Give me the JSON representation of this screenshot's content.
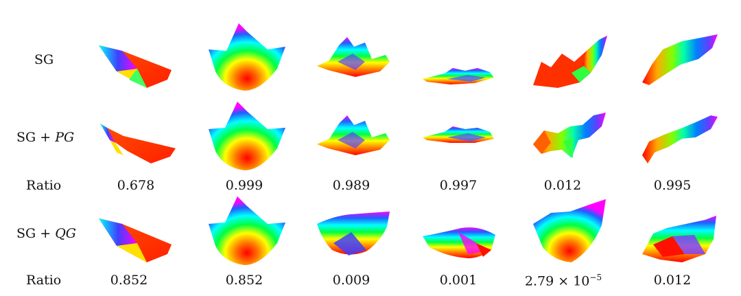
{
  "rows": [
    {
      "label_main": "SG",
      "label_op": "",
      "label_var": ""
    },
    {
      "label_main": "SG",
      "label_op": "+",
      "label_var": "PG"
    },
    {
      "label_main": "SG",
      "label_op": "+",
      "label_var": "QG"
    }
  ],
  "ratio_label": "Ratio",
  "ratios_pg": [
    "0.678",
    "0.999",
    "0.989",
    "0.997",
    "0.012",
    "0.995"
  ],
  "ratios_qg": [
    "0.852",
    "0.852",
    "0.009",
    "0.001",
    "",
    "0.012"
  ],
  "ratio_qg_5": {
    "mantissa": "2.79",
    "times": "×",
    "base": "10",
    "exponent": "−5"
  },
  "colors": [
    "#ff0000",
    "#ff8000",
    "#ffff00",
    "#00ff00",
    "#00ffff",
    "#0000ff",
    "#ff00ff"
  ]
}
